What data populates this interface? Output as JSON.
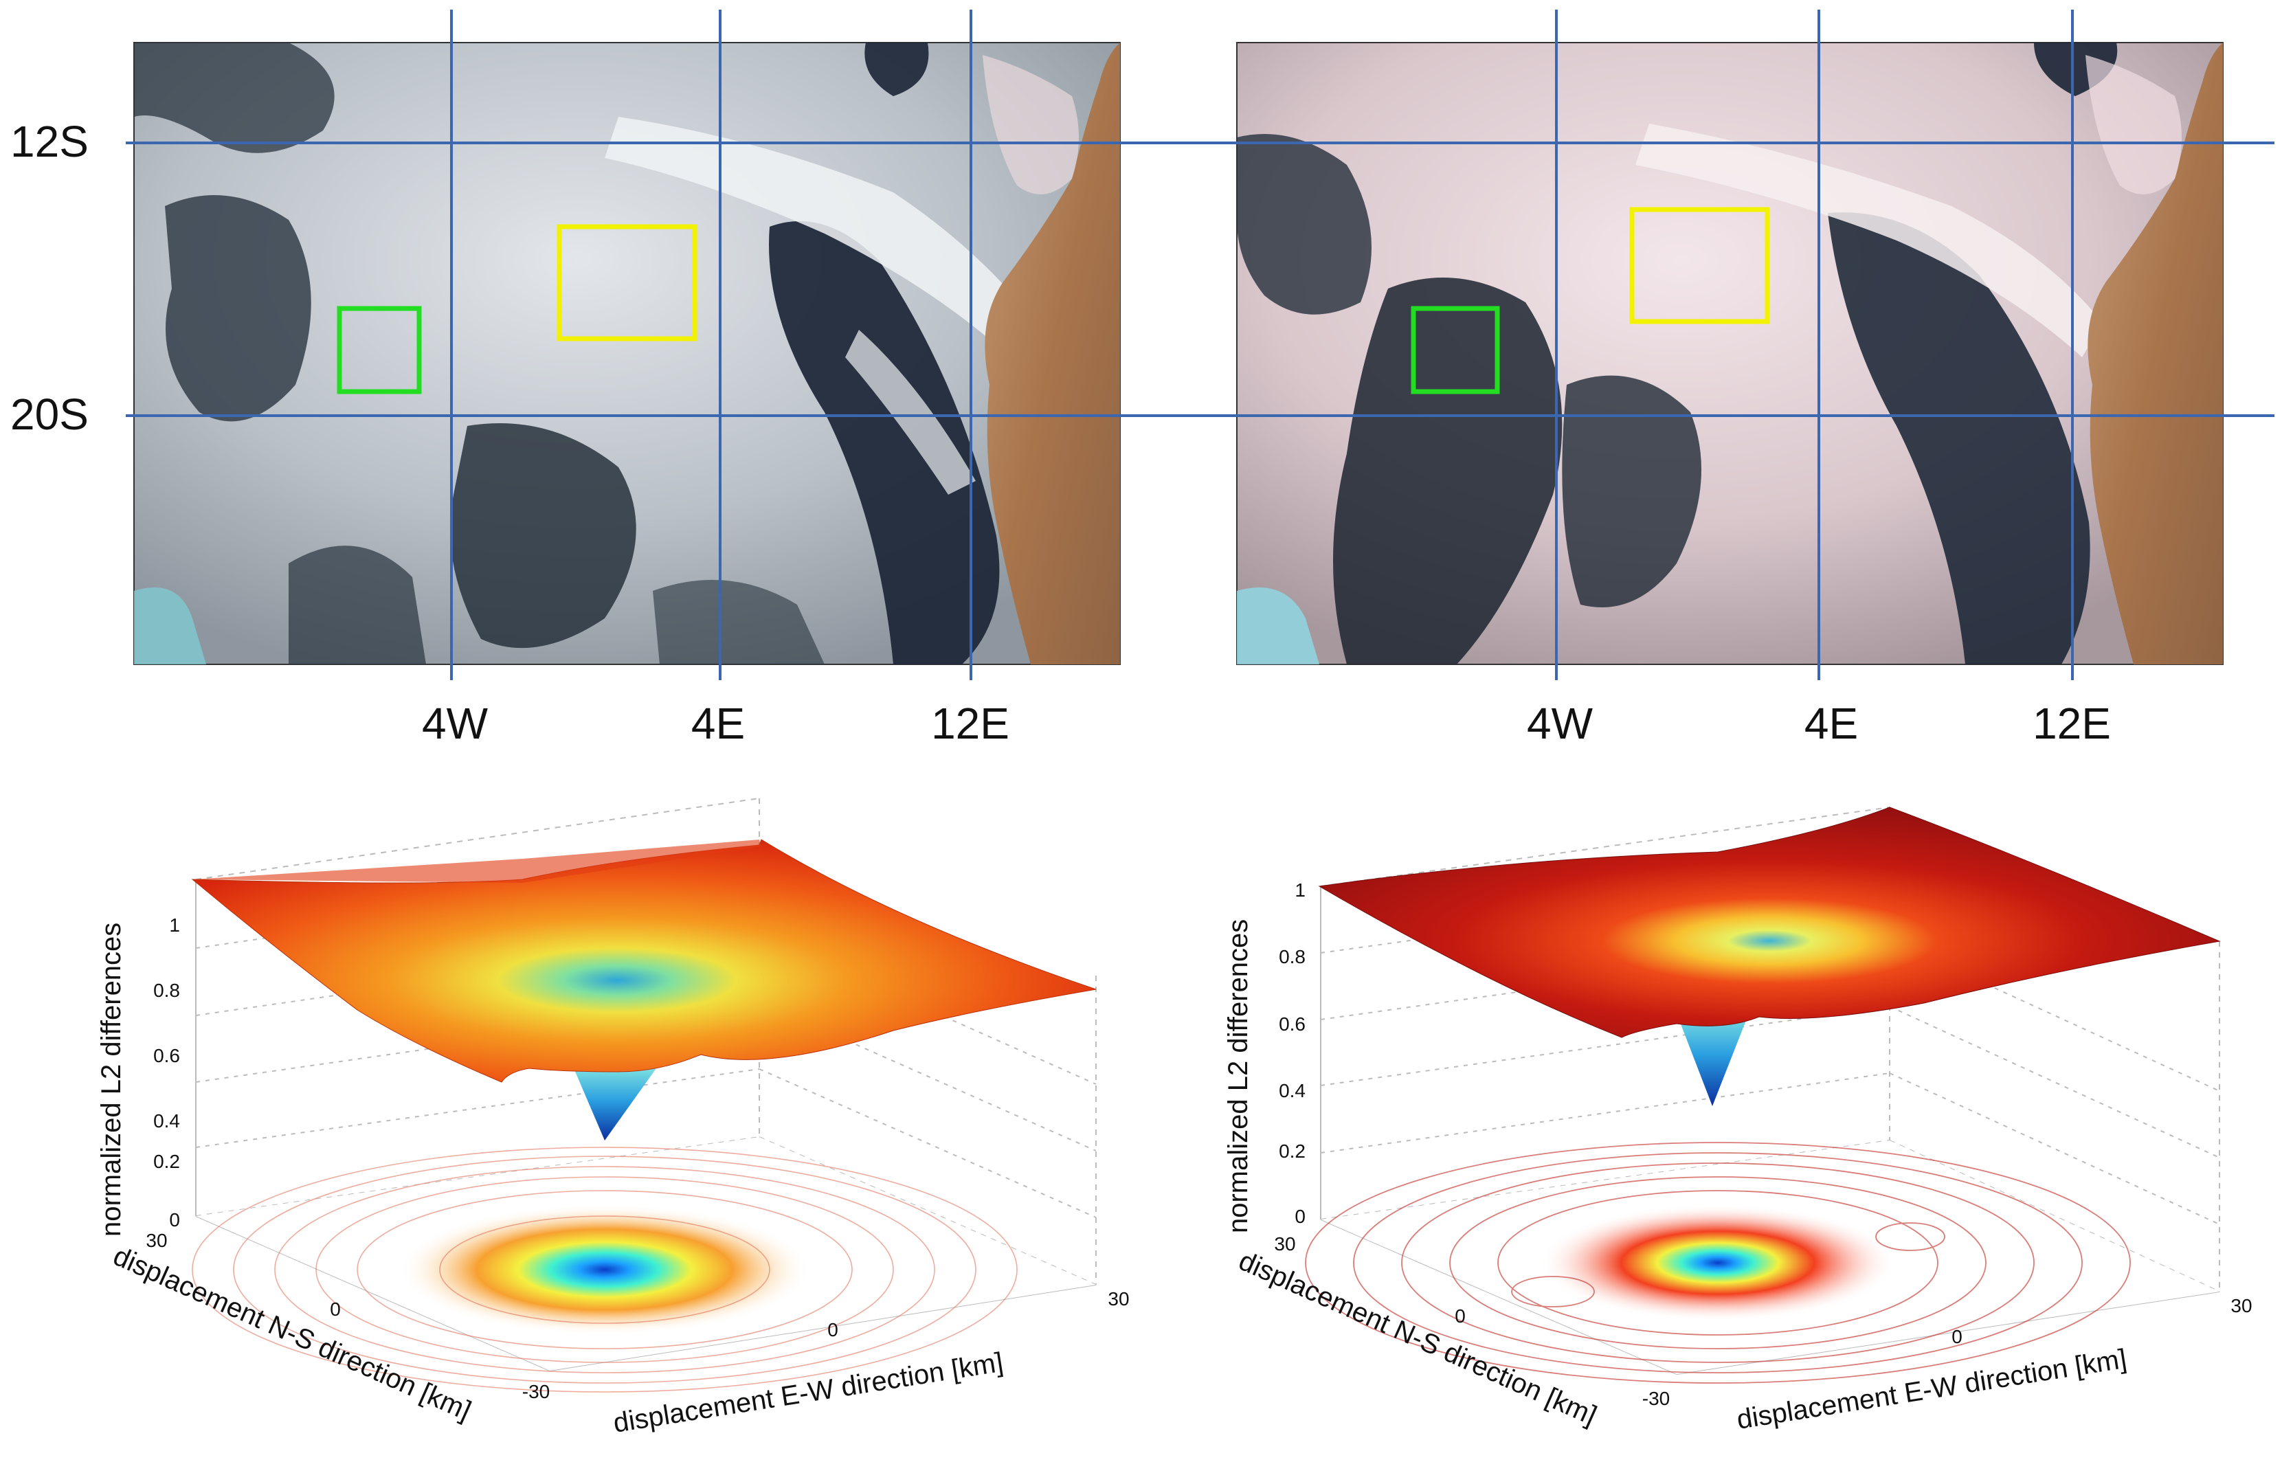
{
  "maps": {
    "lat_labels": [
      "12S",
      "20S"
    ],
    "lon_labels": [
      "4W",
      "4E",
      "12E"
    ]
  },
  "surfaces": [
    {
      "z_label": "normalized L2 differences",
      "z_ticks": [
        "1",
        "0.8",
        "0.6",
        "0.4",
        "0.2",
        "0"
      ],
      "ns_label": "displacement N-S direction [km]",
      "ns_ticks": [
        "30",
        "0",
        "-30"
      ],
      "ew_label": "displacement E-W direction [km]",
      "ew_ticks": [
        "0",
        "30"
      ]
    },
    {
      "z_label": "normalized L2 differences",
      "z_ticks": [
        "1",
        "0.8",
        "0.6",
        "0.4",
        "0.2",
        "0"
      ],
      "ns_label": "displacement N-S direction [km]",
      "ns_ticks": [
        "30",
        "0",
        "-30"
      ],
      "ew_label": "displacement E-W direction [km]",
      "ew_ticks": [
        "0",
        "30"
      ]
    }
  ],
  "colors": {
    "grid_line": "#3a67b0",
    "green_box": "#22dd22",
    "yellow_box": "#f2f200",
    "ocean": "#1b2536",
    "cloud": "#c9cfd3",
    "land": "#b5825a"
  }
}
